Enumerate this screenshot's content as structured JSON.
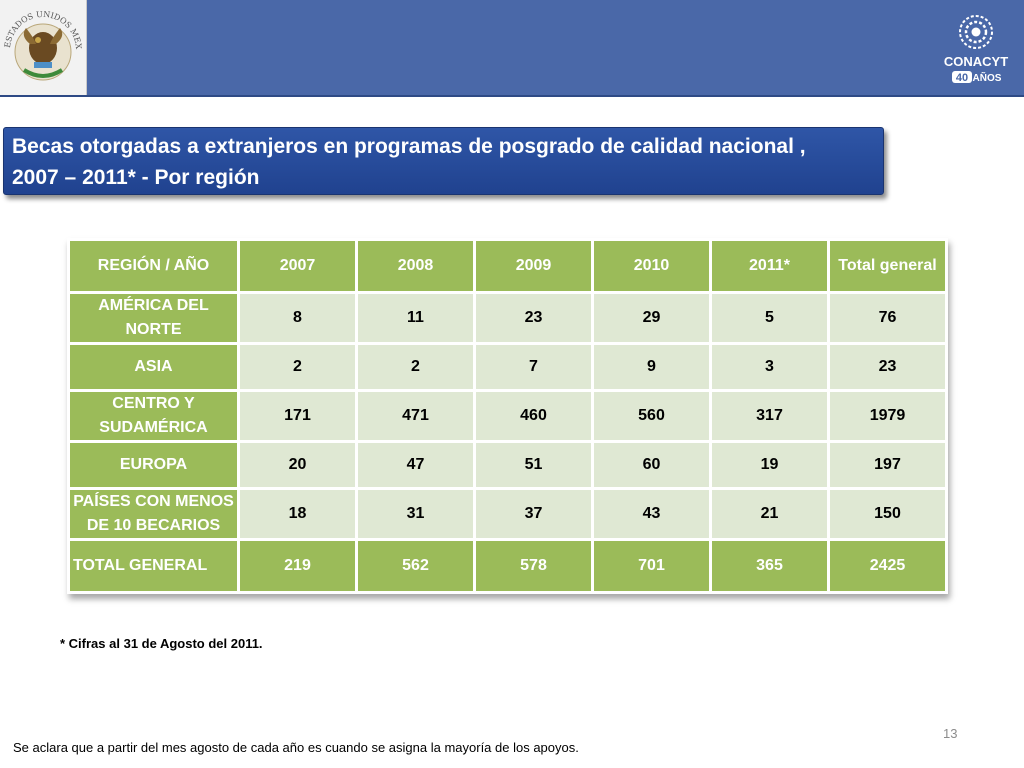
{
  "header": {
    "seal_text": "ESTADOS UNIDOS MEXICANOS",
    "logo_name": "CONACYT",
    "logo_years": "40",
    "logo_anos": "AÑOS"
  },
  "title": {
    "line1": "Becas otorgadas a extranjeros en programas de posgrado de calidad nacional ,",
    "line2": "2007 – 2011* -  Por  región"
  },
  "table": {
    "headers": [
      "REGIÓN / AÑO",
      "2007",
      "2008",
      "2009",
      "2010",
      "2011*",
      "Total general"
    ],
    "rows": [
      {
        "region": "AMÉRICA DEL NORTE",
        "values": [
          "8",
          "11",
          "23",
          "29",
          "5",
          "76"
        ]
      },
      {
        "region": "ASIA",
        "values": [
          "2",
          "2",
          "7",
          "9",
          "3",
          "23"
        ]
      },
      {
        "region": "CENTRO Y SUDAMÉRICA",
        "values": [
          "171",
          "471",
          "460",
          "560",
          "317",
          "1979"
        ]
      },
      {
        "region": "EUROPA",
        "values": [
          "20",
          "47",
          "51",
          "60",
          "19",
          "197"
        ]
      },
      {
        "region": "PAÍSES CON MENOS DE 10 BECARIOS",
        "values": [
          "18",
          "31",
          "37",
          "43",
          "21",
          "150"
        ]
      }
    ],
    "total": {
      "region": "TOTAL GENERAL",
      "values": [
        "219",
        "562",
        "578",
        "701",
        "365",
        "2425"
      ]
    }
  },
  "note": "* Cifras al 31 de Agosto del 2011.",
  "page_number": "13",
  "footer": "Se aclara que a partir del  mes agosto de cada año es cuando se asigna la mayoría de los apoyos."
}
